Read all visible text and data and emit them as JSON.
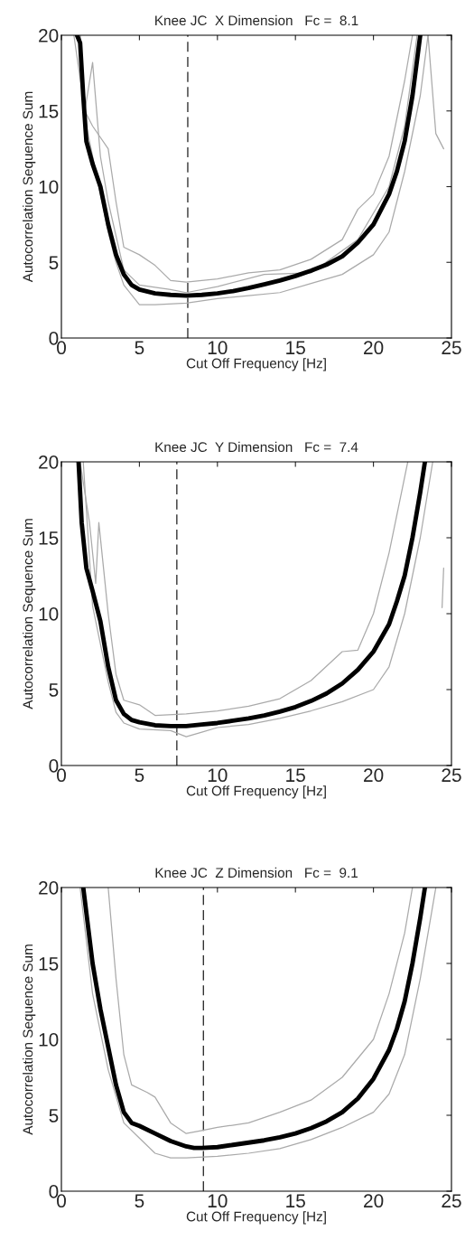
{
  "chart_data": [
    {
      "type": "line",
      "title": "Knee JC  X Dimension   Fc =  8.1",
      "xlabel": "Cut Off Frequency [Hz]",
      "ylabel": "Autocorrelation Sequence Sum",
      "xlim": [
        0,
        25
      ],
      "ylim": [
        0,
        20
      ],
      "xticks": [
        0,
        5,
        10,
        15,
        20,
        25
      ],
      "yticks": [
        0,
        5,
        10,
        15,
        20
      ],
      "grid": false,
      "legend": false,
      "marker": "none",
      "ref_lines": [
        {
          "axis": "x",
          "value": 8.1,
          "color": "#000000",
          "line_style": "dashed"
        }
      ],
      "series": [
        {
          "color": "#aaaaaa",
          "x": [
            0.8,
            1.5,
            2,
            3,
            3.5,
            4,
            5,
            6,
            7,
            8,
            10,
            12,
            14,
            16,
            18,
            19,
            20,
            21,
            22,
            22.5
          ],
          "values": [
            20,
            15,
            14,
            12.5,
            9,
            6,
            5.5,
            4.8,
            3.8,
            3.7,
            3.9,
            4.3,
            4.5,
            5.2,
            6.5,
            8.5,
            9.5,
            12,
            17,
            20
          ]
        },
        {
          "color": "#aaaaaa",
          "x": [
            1.2,
            1.6,
            2,
            3,
            3.5,
            4,
            5,
            6,
            8,
            10,
            12,
            14,
            16,
            18,
            20,
            21,
            22,
            23,
            23.5
          ],
          "values": [
            20,
            14,
            12,
            7,
            5,
            3.5,
            2.2,
            2.2,
            2.3,
            2.6,
            2.8,
            3.0,
            3.6,
            4.2,
            5.5,
            7,
            11,
            16,
            20
          ]
        },
        {
          "color": "#aaaaaa",
          "x": [
            1.2,
            1.5,
            2,
            2.5,
            3,
            4,
            5,
            7,
            8,
            10,
            13,
            16,
            19,
            21,
            22,
            22.8
          ],
          "values": [
            20,
            15,
            18.2,
            12,
            9,
            4.5,
            3.5,
            3.2,
            3.0,
            3.4,
            4.2,
            4.3,
            6.5,
            10,
            14,
            20
          ]
        },
        {
          "color": "#aaaaaa",
          "x": [
            23.5,
            24,
            24.5
          ],
          "values": [
            20,
            13.5,
            12.5
          ]
        },
        {
          "color": "#000000",
          "x": [
            1.0,
            1.2,
            1.4,
            1.6,
            2.0,
            2.5,
            3.0,
            3.5,
            4.0,
            4.5,
            5,
            6,
            7,
            8,
            9,
            10,
            11,
            12,
            13,
            14,
            15,
            16,
            17,
            18,
            19,
            20,
            21,
            21.5,
            22,
            22.5,
            23
          ],
          "values": [
            20,
            19.5,
            16,
            13,
            11.5,
            10,
            7.5,
            5.5,
            4.2,
            3.5,
            3.2,
            2.95,
            2.85,
            2.8,
            2.85,
            2.95,
            3.1,
            3.3,
            3.55,
            3.8,
            4.1,
            4.45,
            4.85,
            5.4,
            6.3,
            7.5,
            9.5,
            11,
            13,
            16,
            20
          ]
        }
      ]
    },
    {
      "type": "line",
      "title": "Knee JC  Y Dimension   Fc =  7.4",
      "xlabel": "Cut Off Frequency [Hz]",
      "ylabel": "Autocorrelation Sequence Sum",
      "xlim": [
        0,
        25
      ],
      "ylim": [
        0,
        20
      ],
      "xticks": [
        0,
        5,
        10,
        15,
        20,
        25
      ],
      "yticks": [
        0,
        5,
        10,
        15,
        20
      ],
      "grid": false,
      "legend": false,
      "marker": "none",
      "ref_lines": [
        {
          "axis": "x",
          "value": 7.4,
          "color": "#000000",
          "line_style": "dashed"
        }
      ],
      "series": [
        {
          "color": "#aaaaaa",
          "x": [
            1.2,
            1.8,
            2.2,
            2.4,
            2.7,
            3,
            3.5,
            4,
            5,
            6,
            8,
            10,
            12,
            14,
            16,
            18,
            19,
            20,
            21,
            22,
            22.2
          ],
          "values": [
            20,
            16,
            12,
            16,
            13,
            10,
            6,
            4.3,
            4.0,
            3.3,
            3.4,
            3.6,
            3.9,
            4.4,
            5.6,
            7.5,
            7.6,
            10,
            14,
            19,
            20
          ]
        },
        {
          "color": "#aaaaaa",
          "x": [
            1.4,
            2,
            3,
            3.5,
            4,
            5,
            7,
            8,
            9,
            10,
            12,
            14,
            16,
            18,
            20,
            21,
            22,
            23,
            23.8
          ],
          "values": [
            20,
            10.5,
            5.5,
            3.5,
            2.8,
            2.4,
            2.3,
            1.9,
            2.2,
            2.5,
            2.7,
            3.1,
            3.6,
            4.2,
            5.0,
            6.5,
            10,
            15,
            20
          ]
        },
        {
          "color": "#aaaaaa",
          "x": [
            24.4,
            24.5
          ],
          "values": [
            10.4,
            13
          ]
        },
        {
          "color": "#000000",
          "x": [
            1.1,
            1.3,
            1.6,
            2,
            2.5,
            3,
            3.5,
            4,
            4.5,
            5,
            6,
            7,
            8,
            9,
            10,
            11,
            12,
            13,
            14,
            15,
            16,
            17,
            18,
            19,
            20,
            21,
            21.5,
            22,
            22.5,
            23,
            23.3
          ],
          "values": [
            20,
            16,
            13,
            11.5,
            9.5,
            6.5,
            4.3,
            3.4,
            3.0,
            2.85,
            2.65,
            2.6,
            2.6,
            2.7,
            2.8,
            2.95,
            3.1,
            3.3,
            3.55,
            3.85,
            4.25,
            4.75,
            5.4,
            6.3,
            7.5,
            9.3,
            10.8,
            12.5,
            15,
            18,
            20
          ]
        }
      ]
    },
    {
      "type": "line",
      "title": "Knee JC  Z Dimension   Fc =  9.1",
      "xlabel": "Cut Off Frequency [Hz]",
      "ylabel": "Autocorrelation Sequence Sum",
      "xlim": [
        0,
        25
      ],
      "ylim": [
        0,
        20
      ],
      "xticks": [
        0,
        5,
        10,
        15,
        20,
        25
      ],
      "yticks": [
        0,
        5,
        10,
        15,
        20
      ],
      "grid": false,
      "legend": false,
      "marker": "none",
      "ref_lines": [
        {
          "axis": "x",
          "value": 9.1,
          "color": "#000000",
          "line_style": "dashed"
        }
      ],
      "series": [
        {
          "color": "#aaaaaa",
          "x": [
            3,
            3.5,
            4,
            4.5,
            5.5,
            6,
            7,
            8,
            9,
            10,
            12,
            14,
            16,
            18,
            20,
            21,
            22,
            22.5
          ],
          "values": [
            20,
            14,
            9,
            7,
            6.5,
            6.2,
            4.5,
            3.8,
            4.0,
            4.2,
            4.5,
            5.2,
            6.0,
            7.5,
            10,
            13,
            17,
            20
          ]
        },
        {
          "color": "#aaaaaa",
          "x": [
            1.2,
            2,
            3,
            4,
            5,
            6,
            7,
            8,
            10,
            12,
            14,
            16,
            18,
            20,
            21,
            22,
            23,
            24
          ],
          "values": [
            20,
            13,
            8,
            4.5,
            3.5,
            2.5,
            2.2,
            2.2,
            2.3,
            2.5,
            2.8,
            3.4,
            4.2,
            5.2,
            6.4,
            9,
            14,
            20
          ]
        },
        {
          "color": "#000000",
          "x": [
            1.4,
            2,
            2.5,
            3,
            3.5,
            4,
            4.5,
            5,
            6,
            7,
            8,
            8.5,
            9,
            10,
            11,
            12,
            13,
            14,
            15,
            16,
            17,
            18,
            19,
            20,
            21,
            21.5,
            22,
            22.5,
            23,
            23.3
          ],
          "values": [
            20,
            15,
            12,
            9.5,
            7,
            5.2,
            4.5,
            4.3,
            3.8,
            3.3,
            2.95,
            2.85,
            2.85,
            2.9,
            3.05,
            3.2,
            3.35,
            3.55,
            3.8,
            4.15,
            4.6,
            5.2,
            6.1,
            7.4,
            9.3,
            10.7,
            12.5,
            15,
            18,
            20
          ]
        }
      ]
    }
  ]
}
